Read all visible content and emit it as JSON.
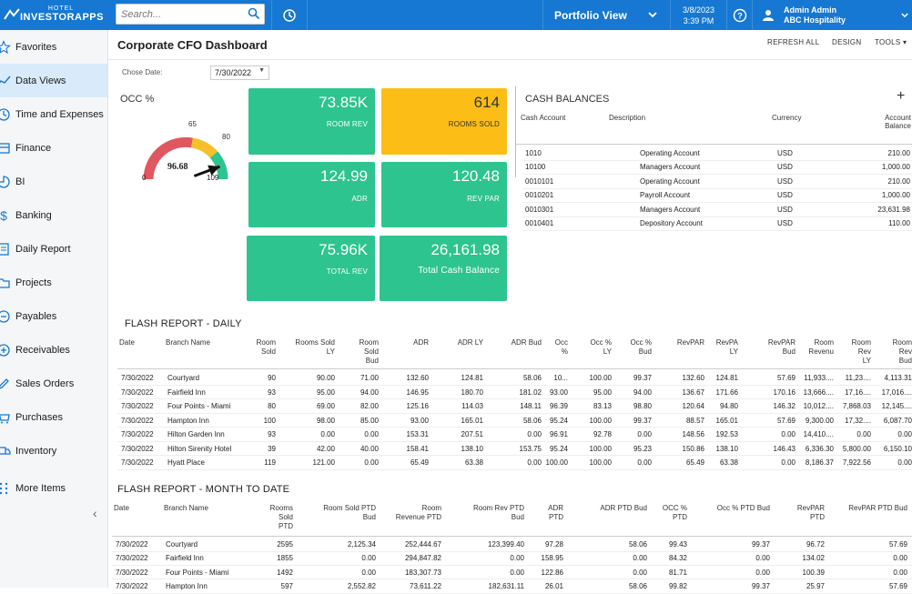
{
  "app": {
    "logo_small": "HOTEL",
    "logo_big": "INVESTORAPPS"
  },
  "search": {
    "placeholder": "Search..."
  },
  "header": {
    "portfolio_label": "Portfolio View",
    "date": "3/8/2023",
    "time": "3:39 PM",
    "user_name": "Admin Admin",
    "company": "ABC Hospitality"
  },
  "sidebar": {
    "items": [
      {
        "label": "Favorites",
        "icon": "star-icon"
      },
      {
        "label": "Data Views",
        "icon": "chart-icon",
        "active": true
      },
      {
        "label": "Time and Expenses",
        "icon": "clock-icon"
      },
      {
        "label": "Finance",
        "icon": "finance-icon"
      },
      {
        "label": "BI",
        "icon": "bi-icon"
      },
      {
        "label": "Banking",
        "icon": "dollar-icon"
      },
      {
        "label": "Daily Report",
        "icon": "report-icon"
      },
      {
        "label": "Projects",
        "icon": "projects-icon"
      },
      {
        "label": "Payables",
        "icon": "payables-icon"
      },
      {
        "label": "Receivables",
        "icon": "plus-circle-icon"
      },
      {
        "label": "Sales Orders",
        "icon": "edit-icon"
      },
      {
        "label": "Purchases",
        "icon": "cart-icon"
      },
      {
        "label": "Inventory",
        "icon": "truck-icon"
      },
      {
        "label": "More Items",
        "icon": "grid-dots-icon"
      }
    ]
  },
  "page": {
    "title": "Corporate CFO Dashboard",
    "refresh_all": "REFRESH ALL",
    "design": "DESIGN",
    "tools": "TOOLS",
    "date_label": "Chose Date:",
    "date_value": "7/30/2022"
  },
  "occ": {
    "label": "OCC %",
    "value": "96.68",
    "value_num": 96.68,
    "min": "0",
    "max": "109",
    "max_num": 109,
    "tick_65": "65",
    "tick_80": "80"
  },
  "kpis": {
    "room_rev": {
      "value": "73.85K",
      "label": "ROOM REV"
    },
    "rooms_sold": {
      "value": "614",
      "label": "ROOMS SOLD"
    },
    "adr": {
      "value": "124.99",
      "label": "ADR"
    },
    "rev_par": {
      "value": "120.48",
      "label": "REV PAR"
    },
    "total_rev": {
      "value": "75.96K",
      "label": "TOTAL REV"
    },
    "total_cash": {
      "value": "26,161.98",
      "label": "Total Cash Balance"
    }
  },
  "cash": {
    "title": "CASH BALANCES",
    "headers": {
      "account": "Cash Account",
      "description": "Description",
      "currency": "Currency",
      "balance_1": "Account",
      "balance_2": "Balance"
    },
    "rows": [
      {
        "account": "1010",
        "description": "Operating Account",
        "currency": "USD",
        "balance": "210.00"
      },
      {
        "account": "10100",
        "description": "Managers Account",
        "currency": "USD",
        "balance": "1,000.00"
      },
      {
        "account": "0010101",
        "description": "Operating Account",
        "currency": "USD",
        "balance": "210.00"
      },
      {
        "account": "0010201",
        "description": "Payroll Account",
        "currency": "USD",
        "balance": "1,000.00"
      },
      {
        "account": "0010301",
        "description": "Managers Account",
        "currency": "USD",
        "balance": "23,631.98"
      },
      {
        "account": "0010401",
        "description": "Depository Account",
        "currency": "USD",
        "balance": "110.00"
      }
    ]
  },
  "daily": {
    "title": "FLASH REPORT - DAILY",
    "headers": [
      "Date",
      "Branch Name",
      "Room\nSold",
      "Rooms Sold\nLY",
      "Room\nSold\nBud",
      "ADR",
      "ADR LY",
      "ADR Bud",
      "Occ\n%",
      "Occ %\nLY",
      "Occ %\nBud",
      "RevPAR",
      "RevPA\nLY",
      "RevPAR\nBud",
      "Room\nRevenu",
      "Room\nRev\nLY",
      "Room\nRev\nBud"
    ],
    "rows": [
      [
        "7/30/2022",
        "Courtyard",
        "90",
        "90.00",
        "71.00",
        "132.60",
        "124.81",
        "58.06",
        "10...",
        "100.00",
        "99.37",
        "132.60",
        "124.81",
        "57.69",
        "11,933....",
        "11,23....",
        "4,113.31"
      ],
      [
        "7/30/2022",
        "Fairfield Inn",
        "93",
        "95.00",
        "94.00",
        "146.95",
        "180.70",
        "181.02",
        "93.00",
        "95.00",
        "94.00",
        "136.67",
        "171.66",
        "170.16",
        "13,666....",
        "17,16....",
        "17,016...."
      ],
      [
        "7/30/2022",
        "Four Points - Miami",
        "80",
        "69.00",
        "82.00",
        "125.16",
        "114.03",
        "148.11",
        "96.39",
        "83.13",
        "98.80",
        "120.64",
        "94.80",
        "146.32",
        "10,012....",
        "7,868.03",
        "12,145...."
      ],
      [
        "7/30/2022",
        "Hampton Inn",
        "100",
        "98.00",
        "85.00",
        "93.00",
        "165.01",
        "58.06",
        "95.24",
        "100.00",
        "99.37",
        "88.57",
        "165.01",
        "57.69",
        "9,300.00",
        "17,32....",
        "6,087.70"
      ],
      [
        "7/30/2022",
        "Hilton Garden Inn",
        "93",
        "0.00",
        "0.00",
        "153.31",
        "207.51",
        "0.00",
        "96.91",
        "92.78",
        "0.00",
        "148.56",
        "192.53",
        "0.00",
        "14,410....",
        "0.00",
        "0.00"
      ],
      [
        "7/30/2022",
        "Hilton Sirenity Hotel",
        "39",
        "42.00",
        "40.00",
        "158.41",
        "138.10",
        "153.75",
        "95.24",
        "100.00",
        "95.23",
        "150.86",
        "138.10",
        "146.43",
        "6,336.30",
        "5,800.00",
        "6,150.10"
      ],
      [
        "7/30/2022",
        "Hyatt Place",
        "119",
        "121.00",
        "0.00",
        "65.49",
        "63.38",
        "0.00",
        "100.00",
        "100.00",
        "0.00",
        "65.49",
        "63.38",
        "0.00",
        "8,186.37",
        "7,922.56",
        "0.00"
      ]
    ]
  },
  "mtd": {
    "title": "FLASH REPORT - MONTH TO DATE",
    "headers": [
      "Date",
      "Branch Name",
      "Rooms\nSold\nPTD",
      "Room Sold PTD\nBud",
      "Room\nRevenue PTD",
      "Room Rev PTD\nBud",
      "ADR\nPTD",
      "ADR PTD Bud",
      "OCC %\nPTD",
      "Occ % PTD Bud",
      "RevPAR\nPTD",
      "RevPAR PTD Bud"
    ],
    "rows": [
      [
        "7/30/2022",
        "Courtyard",
        "2595",
        "2,125.34",
        "252,444.67",
        "123,399.40",
        "97.28",
        "58.06",
        "99.43",
        "99.37",
        "96.72",
        "57.69"
      ],
      [
        "7/30/2022",
        "Fairfield Inn",
        "1855",
        "0.00",
        "294,847.82",
        "0.00",
        "158.95",
        "0.00",
        "84.32",
        "0.00",
        "134.02",
        "0.00"
      ],
      [
        "7/30/2022",
        "Four Points - Miami",
        "1492",
        "0.00",
        "183,307.73",
        "0.00",
        "122.86",
        "0.00",
        "81.71",
        "0.00",
        "100.39",
        "0.00"
      ],
      [
        "7/30/2022",
        "Hampton Inn",
        "597",
        "2,552.82",
        "73,611.22",
        "182,631.11",
        "26.01",
        "58.06",
        "99.82",
        "99.37",
        "25.97",
        "57.69"
      ]
    ]
  }
}
